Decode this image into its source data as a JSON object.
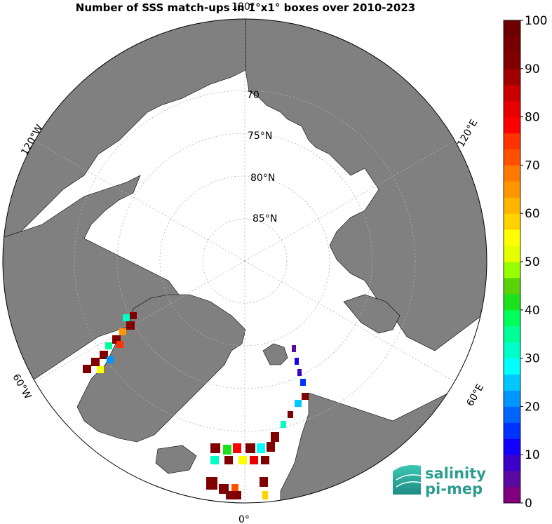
{
  "title": "Number of SSS match-ups in 1°x1° boxes over 2010-2023",
  "colors": {
    "land": "#808080",
    "ocean": "#ffffff",
    "grid": "#b0b0b0",
    "coast": "#000000"
  },
  "map": {
    "projection": "north polar stereographic",
    "lat_circles": [
      {
        "lat": 70,
        "label": "70"
      },
      {
        "lat": 75,
        "label": "75",
        "unit": "°N"
      },
      {
        "lat": 80,
        "label": "80",
        "unit": "°N"
      },
      {
        "lat": 85,
        "label": "85",
        "unit": "°N"
      }
    ],
    "lon_labels": [
      {
        "lon": "0",
        "text": "0°"
      },
      {
        "lon": "60E",
        "text": "60°E"
      },
      {
        "lon": "120E",
        "text": "120°E"
      },
      {
        "lon": "180",
        "text": "180°"
      },
      {
        "lon": "120W",
        "text": "120°W"
      },
      {
        "lon": "60W",
        "text": "60°W"
      }
    ]
  },
  "colorbar": {
    "min": 0,
    "max": 100,
    "tick_labels": [
      "0",
      "10",
      "20",
      "30",
      "40",
      "50",
      "60",
      "70",
      "80",
      "90",
      "100"
    ],
    "colors": [
      "#800080",
      "#5a0aa0",
      "#3c00c8",
      "#1400ff",
      "#0032ff",
      "#0064ff",
      "#0096ff",
      "#00c8ff",
      "#00ffff",
      "#00ffc8",
      "#00ff96",
      "#00ff5a",
      "#1ee11e",
      "#5ad20a",
      "#96ff00",
      "#e6ff00",
      "#ffff00",
      "#ffd200",
      "#ffb400",
      "#ff9600",
      "#ff7800",
      "#ff5000",
      "#ff3200",
      "#ff0000",
      "#e60000",
      "#c80000",
      "#a00000",
      "#800000",
      "#780000",
      "#6e0000"
    ]
  },
  "logo": {
    "line1": "salinity",
    "line2": "pi-mep"
  }
}
